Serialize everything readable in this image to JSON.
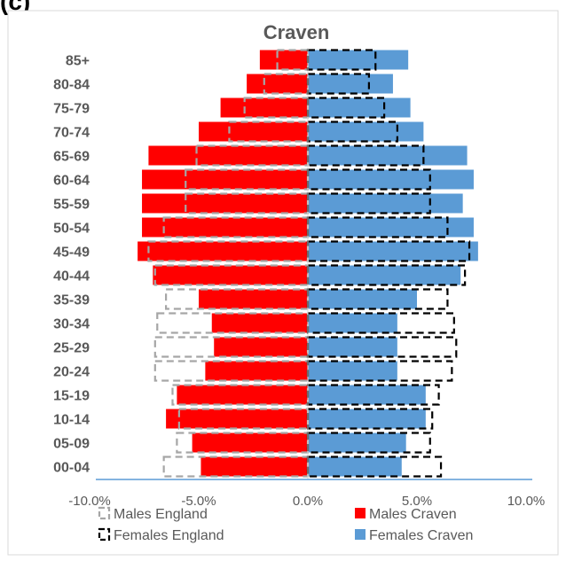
{
  "chart_data": {
    "type": "bar",
    "orientation": "horizontal",
    "title": "Craven",
    "categories": [
      "85+",
      "80-84",
      "75-79",
      "70-74",
      "65-69",
      "60-64",
      "55-59",
      "50-54",
      "45-49",
      "40-44",
      "35-39",
      "30-34",
      "25-29",
      "20-24",
      "15-19",
      "10-14",
      "05-09",
      "00-04"
    ],
    "series": [
      {
        "name": "Males Craven",
        "style": "filled",
        "color": "#ff0000",
        "values": [
          -2.2,
          -2.8,
          -4.0,
          -5.0,
          -7.3,
          -7.6,
          -7.6,
          -7.6,
          -7.8,
          -7.1,
          -5.0,
          -4.4,
          -4.3,
          -4.7,
          -6.0,
          -6.5,
          -5.3,
          -4.9
        ]
      },
      {
        "name": "Females Craven",
        "style": "filled",
        "color": "#5b9bd5",
        "values": [
          4.6,
          3.9,
          4.7,
          5.3,
          7.3,
          7.6,
          7.1,
          7.6,
          7.8,
          7.0,
          5.0,
          4.1,
          4.1,
          4.1,
          5.4,
          5.4,
          4.5,
          4.3
        ]
      },
      {
        "name": "Males England",
        "style": "dashed-outline",
        "color": "#a6a6a6",
        "values": [
          -1.4,
          -2.0,
          -2.9,
          -3.6,
          -5.1,
          -5.6,
          -5.6,
          -6.6,
          -7.3,
          -7.0,
          -6.5,
          -6.9,
          -7.0,
          -7.0,
          -6.2,
          -5.9,
          -6.0,
          -6.6
        ]
      },
      {
        "name": "Females England",
        "style": "dashed-outline",
        "color": "#000000",
        "values": [
          3.1,
          2.8,
          3.5,
          4.1,
          5.3,
          5.6,
          5.6,
          6.4,
          7.4,
          7.2,
          6.4,
          6.7,
          6.8,
          6.6,
          6.0,
          5.7,
          5.6,
          6.1
        ]
      }
    ],
    "xlim": [
      -10,
      10
    ],
    "xticks": [
      "-10.0%",
      "-5.0%",
      "0.0%",
      "5.0%",
      "10.0%"
    ],
    "legend": [
      {
        "label": "Males England",
        "series": 2
      },
      {
        "label": "Males Craven",
        "series": 0
      },
      {
        "label": "Females England",
        "series": 3
      },
      {
        "label": "Females Craven",
        "series": 1
      }
    ],
    "legend_position": "bottom",
    "grid": false
  }
}
